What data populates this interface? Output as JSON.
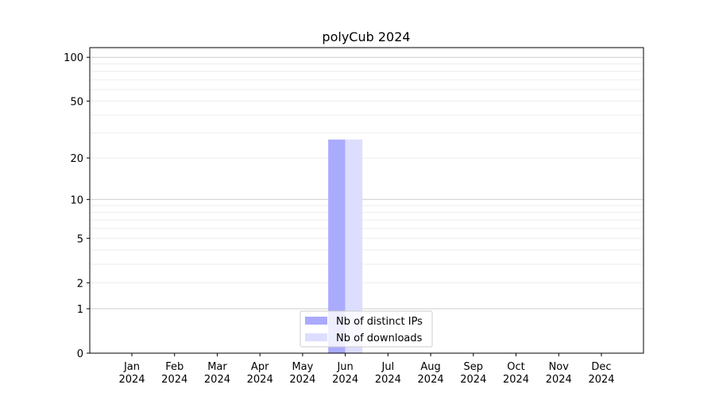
{
  "chart_data": {
    "type": "bar",
    "title": "polyCub 2024",
    "xlabel": "",
    "ylabel": "",
    "y_scale": "symlog (log of 1+y)",
    "ylim": [
      0,
      116
    ],
    "yticks": [
      0,
      1,
      2,
      5,
      10,
      20,
      50,
      100
    ],
    "grid": "horizontal major and minor",
    "legend_position": "lower center",
    "categories": [
      "Jan\n2024",
      "Feb\n2024",
      "Mar\n2024",
      "Apr\n2024",
      "May\n2024",
      "Jun\n2024",
      "Jul\n2024",
      "Aug\n2024",
      "Sep\n2024",
      "Oct\n2024",
      "Nov\n2024",
      "Dec\n2024"
    ],
    "series": [
      {
        "name": "Nb of distinct IPs",
        "color": "#aaaaff",
        "values": [
          0,
          0,
          0,
          0,
          0,
          27,
          0,
          0,
          0,
          0,
          0,
          0
        ]
      },
      {
        "name": "Nb of downloads",
        "color": "#ddddff",
        "values": [
          0,
          0,
          0,
          0,
          0,
          27,
          0,
          0,
          0,
          0,
          0,
          0
        ]
      }
    ]
  }
}
